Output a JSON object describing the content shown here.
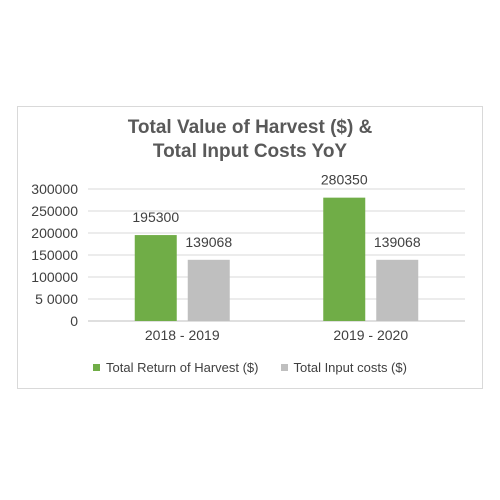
{
  "chart_data": {
    "type": "bar",
    "title_lines": [
      "Total Value of Harvest ($) &",
      "Total Input Costs YoY"
    ],
    "categories": [
      "2018 - 2019",
      "2019 - 2020"
    ],
    "series": [
      {
        "name": "Total Return of Harvest ($)",
        "values": [
          195300,
          280350
        ],
        "color": "#70ad47"
      },
      {
        "name": "Total Input costs ($)",
        "values": [
          139068,
          139068
        ],
        "color": "#bfbfbf"
      }
    ],
    "y_ticks": [
      0,
      50000,
      100000,
      150000,
      200000,
      250000,
      300000
    ],
    "y_tick_labels": [
      "0",
      "5 0000",
      "100000",
      "150000",
      "200000",
      "250000",
      "300000"
    ],
    "ylim": [
      0,
      300000
    ],
    "grid": true,
    "legend_position": "bottom",
    "data_labels": true
  }
}
